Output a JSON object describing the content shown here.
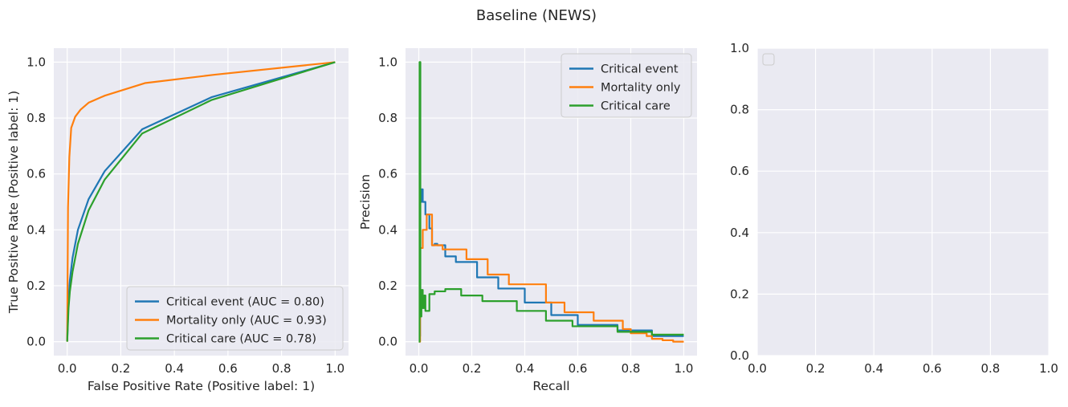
{
  "suptitle": "Baseline (NEWS)",
  "colors": {
    "blue": "#1f77b4",
    "orange": "#ff7f0e",
    "green": "#2ca02c",
    "panel_bg": "#eaeaf2",
    "grid": "#ffffff",
    "text": "#262626"
  },
  "chart_data": [
    {
      "type": "line",
      "title": "",
      "xlabel": "False Positive Rate (Positive label: 1)",
      "ylabel": "True Positive Rate (Positive label: 1)",
      "xlim": [
        -0.05,
        1.05
      ],
      "ylim": [
        -0.05,
        1.05
      ],
      "xticks": [
        "0.0",
        "0.2",
        "0.4",
        "0.6",
        "0.8",
        "1.0"
      ],
      "yticks": [
        "0.0",
        "0.2",
        "0.4",
        "0.6",
        "0.8",
        "1.0"
      ],
      "legend_position": "lower-right",
      "series": [
        {
          "name": "Critical event (AUC = 0.80)",
          "color": "#1f77b4",
          "x": [
            0.0,
            0.005,
            0.01,
            0.02,
            0.04,
            0.08,
            0.14,
            0.28,
            0.54,
            1.0
          ],
          "y": [
            0.0,
            0.15,
            0.22,
            0.3,
            0.4,
            0.51,
            0.61,
            0.76,
            0.875,
            1.0
          ]
        },
        {
          "name": "Mortality only (AUC = 0.93)",
          "color": "#ff7f0e",
          "x": [
            0.0,
            0.003,
            0.008,
            0.015,
            0.03,
            0.05,
            0.08,
            0.14,
            0.29,
            0.55,
            1.0
          ],
          "y": [
            0.0,
            0.48,
            0.66,
            0.765,
            0.805,
            0.83,
            0.855,
            0.88,
            0.925,
            0.955,
            1.0
          ]
        },
        {
          "name": "Critical care (AUC = 0.78)",
          "color": "#2ca02c",
          "x": [
            0.0,
            0.005,
            0.01,
            0.02,
            0.04,
            0.08,
            0.14,
            0.28,
            0.54,
            1.0
          ],
          "y": [
            0.0,
            0.12,
            0.18,
            0.25,
            0.35,
            0.47,
            0.58,
            0.745,
            0.865,
            1.0
          ]
        }
      ]
    },
    {
      "type": "line",
      "title": "",
      "xlabel": "Recall",
      "ylabel": "Precision",
      "xlim": [
        -0.05,
        1.05
      ],
      "ylim": [
        -0.05,
        1.05
      ],
      "xticks": [
        "0.0",
        "0.2",
        "0.4",
        "0.6",
        "0.8",
        "1.0"
      ],
      "yticks": [
        "0.0",
        "0.2",
        "0.4",
        "0.6",
        "0.8",
        "1.0"
      ],
      "legend_position": "upper-right",
      "series": [
        {
          "name": "Critical event",
          "color": "#1f77b4",
          "x": [
            0,
            0.005,
            0.005,
            0.01,
            0.01,
            0.015,
            0.015,
            0.025,
            0.025,
            0.04,
            0.04,
            0.05,
            0.05,
            0.06,
            0.06,
            0.07,
            0.07,
            0.1,
            0.1,
            0.14,
            0.14,
            0.22,
            0.22,
            0.3,
            0.3,
            0.4,
            0.4,
            0.5,
            0.5,
            0.6,
            0.6,
            0.75,
            0.75,
            0.88,
            0.88,
            1.0
          ],
          "y": [
            0.02,
            0.02,
            0.5,
            0.5,
            0.545,
            0.545,
            0.5,
            0.5,
            0.455,
            0.455,
            0.405,
            0.405,
            0.345,
            0.345,
            0.35,
            0.35,
            0.345,
            0.345,
            0.305,
            0.305,
            0.285,
            0.285,
            0.23,
            0.23,
            0.19,
            0.19,
            0.14,
            0.14,
            0.095,
            0.095,
            0.06,
            0.06,
            0.04,
            0.04,
            0.02,
            0.02
          ]
        },
        {
          "name": "Mortality only",
          "color": "#ff7f0e",
          "x": [
            0,
            0.005,
            0.005,
            0.015,
            0.015,
            0.03,
            0.03,
            0.05,
            0.05,
            0.09,
            0.09,
            0.18,
            0.18,
            0.26,
            0.26,
            0.34,
            0.34,
            0.48,
            0.48,
            0.55,
            0.55,
            0.66,
            0.66,
            0.77,
            0.77,
            0.8,
            0.8,
            0.86,
            0.86,
            0.88,
            0.88,
            0.92,
            0.92,
            0.96,
            0.96,
            1.0
          ],
          "y": [
            0.0,
            0.0,
            0.335,
            0.335,
            0.4,
            0.4,
            0.455,
            0.455,
            0.345,
            0.345,
            0.33,
            0.33,
            0.295,
            0.295,
            0.24,
            0.24,
            0.205,
            0.205,
            0.14,
            0.14,
            0.105,
            0.105,
            0.075,
            0.075,
            0.045,
            0.045,
            0.03,
            0.03,
            0.02,
            0.02,
            0.01,
            0.01,
            0.005,
            0.005,
            0.0,
            0.0
          ]
        },
        {
          "name": "Critical care",
          "color": "#2ca02c",
          "x": [
            0,
            0.003,
            0.003,
            0.006,
            0.006,
            0.01,
            0.01,
            0.015,
            0.015,
            0.02,
            0.02,
            0.025,
            0.025,
            0.04,
            0.04,
            0.06,
            0.06,
            0.1,
            0.1,
            0.16,
            0.16,
            0.24,
            0.24,
            0.37,
            0.37,
            0.48,
            0.48,
            0.58,
            0.58,
            0.75,
            0.75,
            0.88,
            0.88,
            1.0
          ],
          "y": [
            0.0,
            0.0,
            1.0,
            1.0,
            0.09,
            0.09,
            0.185,
            0.185,
            0.12,
            0.12,
            0.165,
            0.165,
            0.11,
            0.11,
            0.17,
            0.17,
            0.18,
            0.18,
            0.188,
            0.188,
            0.165,
            0.165,
            0.145,
            0.145,
            0.11,
            0.11,
            0.075,
            0.075,
            0.055,
            0.055,
            0.035,
            0.035,
            0.025,
            0.025
          ]
        }
      ]
    },
    {
      "type": "line",
      "title": "",
      "xlabel": "",
      "ylabel": "",
      "xlim": [
        0,
        1
      ],
      "ylim": [
        0,
        1
      ],
      "xticks": [
        "0.0",
        "0.2",
        "0.4",
        "0.6",
        "0.8",
        "1.0"
      ],
      "yticks": [
        "0.0",
        "0.2",
        "0.4",
        "0.6",
        "0.8",
        "1.0"
      ],
      "legend_position": "upper-left",
      "series": []
    }
  ]
}
